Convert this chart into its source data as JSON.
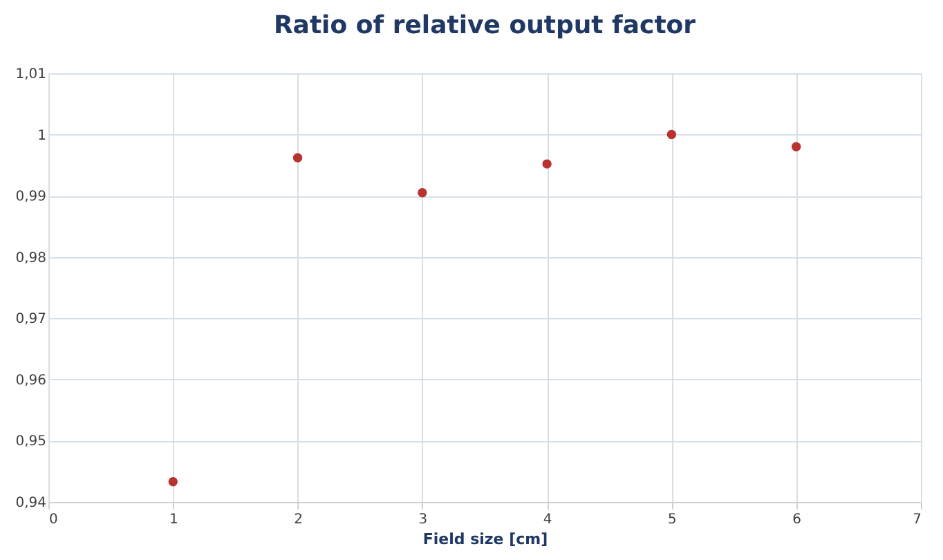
{
  "chart_data": {
    "type": "scatter",
    "title": "Ratio of relative output factor",
    "xlabel": "Field size [cm]",
    "x": [
      1,
      2,
      3,
      4,
      5,
      6
    ],
    "series": [
      {
        "color": "#b83230",
        "values": [
          0.9433,
          0.9962,
          0.9905,
          0.9952,
          1.0,
          0.998
        ]
      }
    ],
    "xlim": [
      0,
      7
    ],
    "xticks": [
      0,
      1,
      2,
      3,
      4,
      5,
      6,
      7
    ],
    "ylim": [
      0.94,
      1.01
    ],
    "yticks": [
      {
        "value": 0.94,
        "label": "0,94"
      },
      {
        "value": 0.95,
        "label": "0,95"
      },
      {
        "value": 0.96,
        "label": "0,96"
      },
      {
        "value": 0.97,
        "label": "0,97"
      },
      {
        "value": 0.98,
        "label": "0,98"
      },
      {
        "value": 0.99,
        "label": "0,99"
      },
      1,
      {
        "value": 1.01,
        "label": "1,01"
      }
    ],
    "grid": true,
    "marker": "circle"
  }
}
